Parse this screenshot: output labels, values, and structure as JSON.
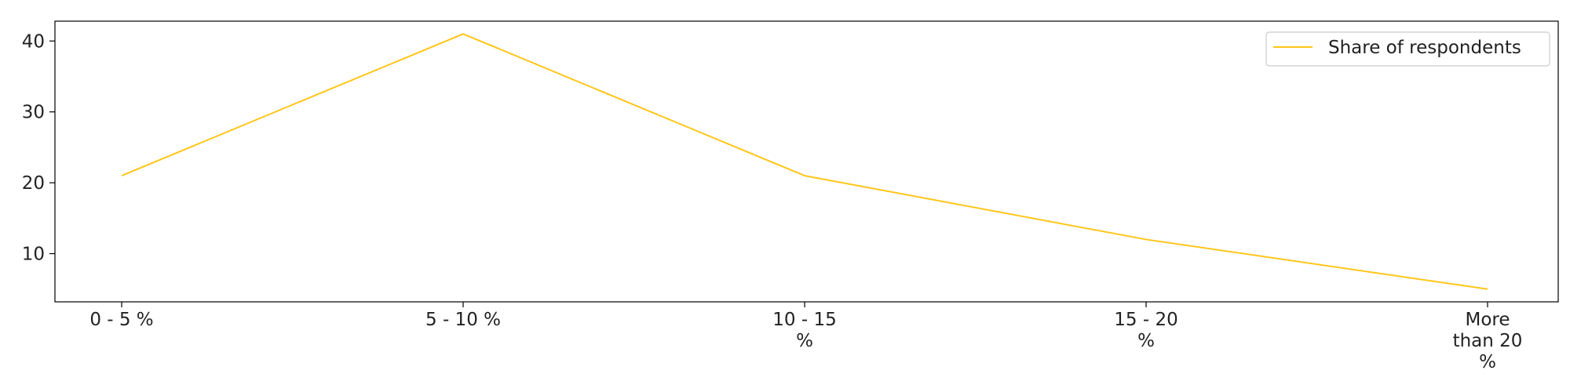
{
  "chart_data": {
    "type": "line",
    "categories": [
      "0 - 5 %",
      "5 - 10 %",
      "10 - 15 %",
      "15 - 20 %",
      "More than 20 %"
    ],
    "category_label_lines": [
      [
        "0 - 5 %"
      ],
      [
        "5 - 10 %"
      ],
      [
        "10 - 15",
        "%"
      ],
      [
        "15 - 20",
        "%"
      ],
      [
        "More",
        "than 20",
        "%"
      ]
    ],
    "series": [
      {
        "name": "Share of respondents",
        "values": [
          21,
          41,
          21,
          12,
          5
        ],
        "color": "#ffc61a"
      }
    ],
    "y_ticks": [
      10,
      20,
      30,
      40
    ],
    "ylim": [
      3.2,
      42.8
    ],
    "title": "",
    "xlabel": "",
    "ylabel": "",
    "grid": false,
    "legend_position": "top-right"
  }
}
